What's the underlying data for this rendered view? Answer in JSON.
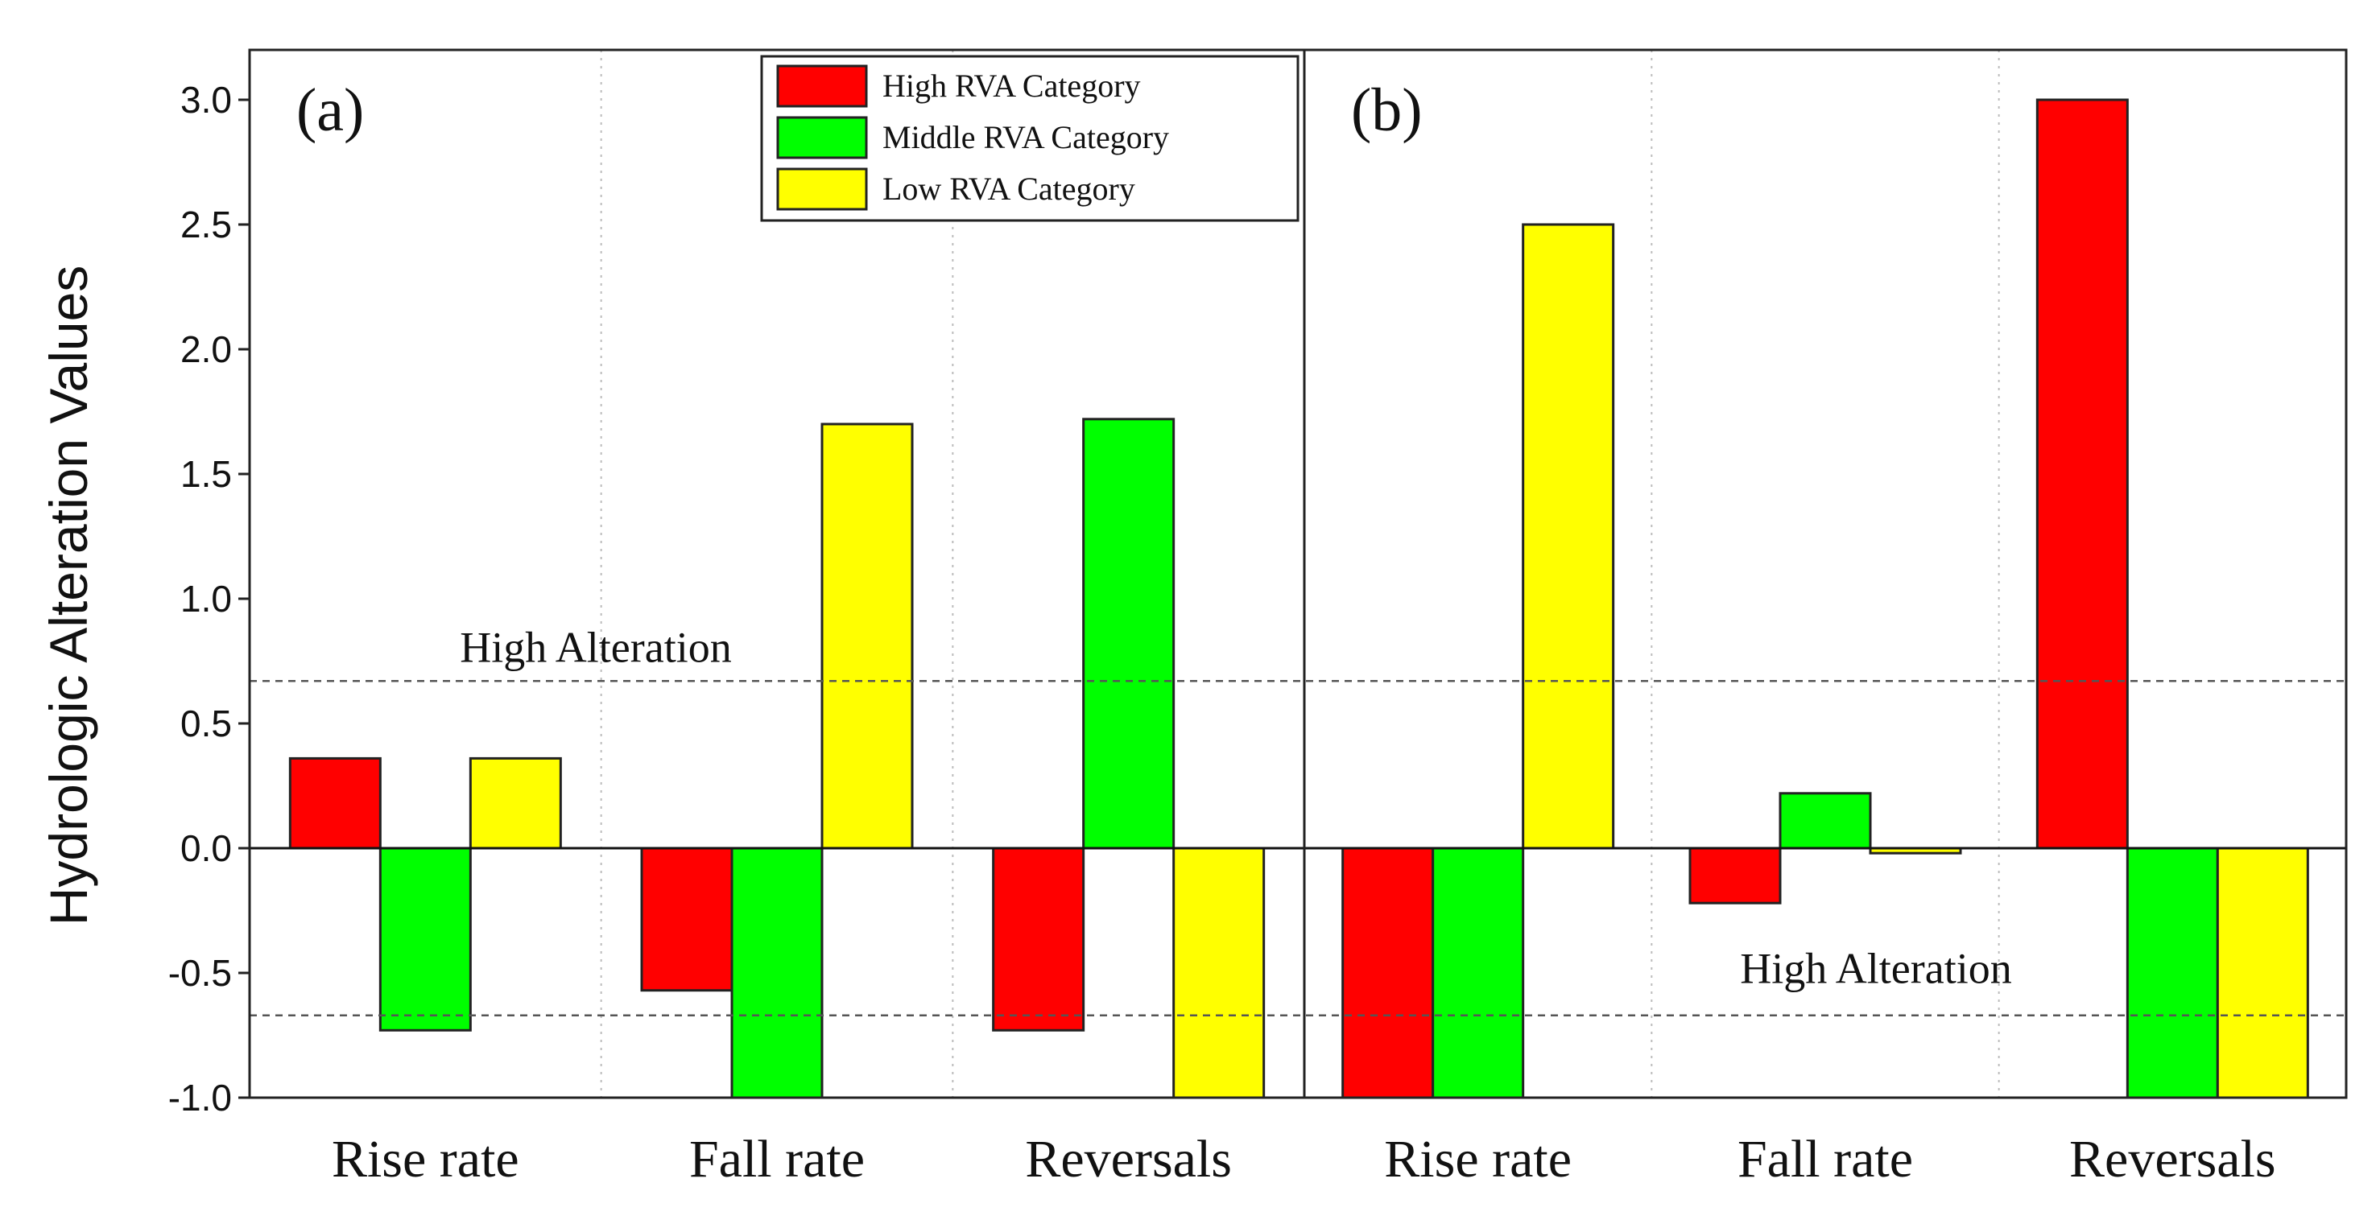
{
  "chart_data": {
    "type": "bar",
    "ylabel": "Hydrologic Alteration Values",
    "ylim": [
      -1.0,
      3.2
    ],
    "yticks": [
      "-1.0",
      "-0.5",
      "0.0",
      "0.5",
      "1.0",
      "1.5",
      "2.0",
      "2.5",
      "3.0"
    ],
    "grid": "vertical dotted between categories",
    "legend": {
      "placement": "top-center",
      "entries": [
        {
          "label": "High RVA Category",
          "color": "#ff0000"
        },
        {
          "label": "Middle RVA Category",
          "color": "#00ff00"
        },
        {
          "label": "Low RVA Category",
          "color": "#ffff00"
        }
      ]
    },
    "thresholds": [
      {
        "value": 0.67,
        "label": "High Alteration"
      },
      {
        "value": -0.67,
        "label": "High Alteration"
      }
    ],
    "panels": [
      {
        "label": "(a)",
        "categories": [
          "Rise rate",
          "Fall rate",
          "Reversals"
        ],
        "series": [
          {
            "name": "High RVA Category",
            "values": [
              0.36,
              -0.57,
              -0.73
            ]
          },
          {
            "name": "Middle RVA Category",
            "values": [
              -0.73,
              -1.0,
              1.72
            ]
          },
          {
            "name": "Low RVA Category",
            "values": [
              0.36,
              1.7,
              -1.0
            ]
          }
        ]
      },
      {
        "label": "(b)",
        "categories": [
          "Rise rate",
          "Fall rate",
          "Reversals"
        ],
        "series": [
          {
            "name": "High RVA Category",
            "values": [
              -1.0,
              -0.22,
              3.0
            ]
          },
          {
            "name": "Middle RVA Category",
            "values": [
              -1.0,
              0.22,
              -1.0
            ]
          },
          {
            "name": "Low RVA Category",
            "values": [
              2.5,
              -0.02,
              -1.0
            ]
          }
        ]
      }
    ]
  }
}
